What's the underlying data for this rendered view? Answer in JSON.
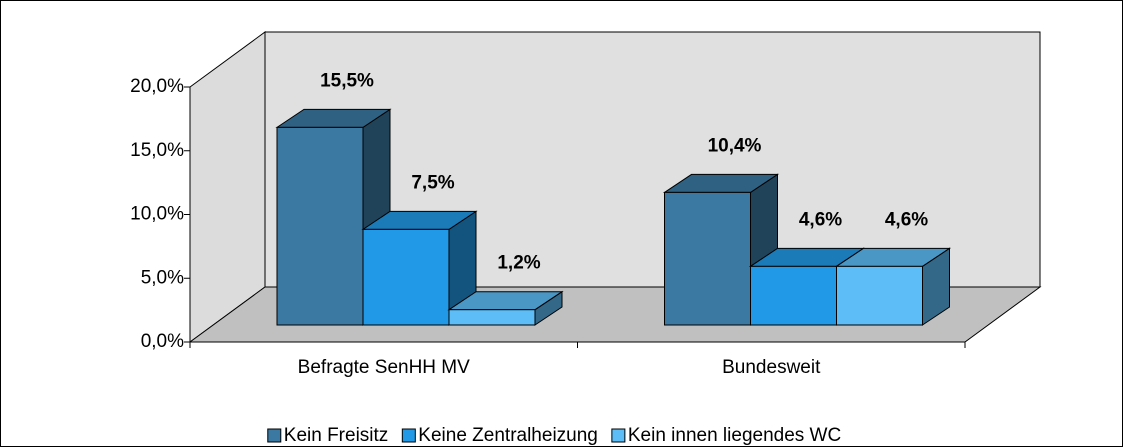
{
  "chart_data": {
    "type": "bar3d",
    "categories": [
      "Befragte SenHH MV",
      "Bundesweit"
    ],
    "series": [
      {
        "name": "Kein Freisitz",
        "color": "#3b79a3",
        "values": [
          15.5,
          10.4
        ],
        "value_labels": [
          "15,5%",
          "10,4%"
        ]
      },
      {
        "name": "Keine Zentralheizung",
        "color": "#2299e6",
        "values": [
          7.5,
          4.6
        ],
        "value_labels": [
          "7,5%",
          "4,6%"
        ]
      },
      {
        "name": "Kein innen liegendes WC",
        "color": "#5cbdf7",
        "values": [
          1.2,
          4.6
        ],
        "value_labels": [
          "1,2%",
          "4,6%"
        ]
      }
    ],
    "ylim": [
      0,
      20
    ],
    "yticks": [
      {
        "value": 0,
        "label": "0,0%"
      },
      {
        "value": 5,
        "label": "5,0%"
      },
      {
        "value": 10,
        "label": "10,0%"
      },
      {
        "value": 15,
        "label": "15,0%"
      },
      {
        "value": 20,
        "label": "20,0%"
      }
    ],
    "legend": "bottom"
  }
}
